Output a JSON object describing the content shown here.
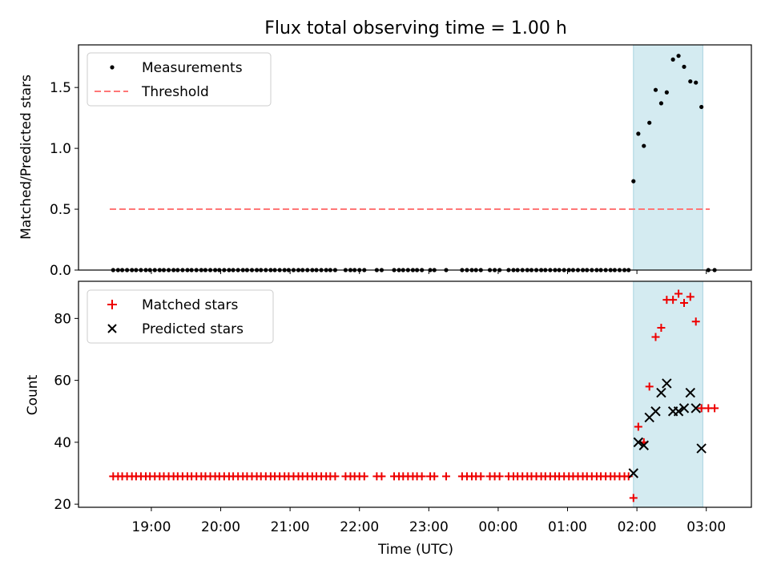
{
  "chart_data": [
    {
      "type": "scatter",
      "title": "Flux total observing time = 1.00 h",
      "ylabel": "Matched/Predicted stars",
      "xlabel": "",
      "xlim_hours": [
        17.95,
        27.65
      ],
      "ylim": [
        0,
        1.85
      ],
      "yticks": [
        0.0,
        0.5,
        1.0,
        1.5
      ],
      "ytick_labels": [
        "0.0",
        "0.5",
        "1.0",
        "1.5"
      ],
      "grid": false,
      "legend_position": "top-left",
      "highlight_span_hours": [
        25.95,
        26.95
      ],
      "highlight_color": "#d4ebf1",
      "series": [
        {
          "name": "Measurements",
          "marker": "dot",
          "color": "#000000",
          "x_hours": [
            18.45,
            18.52,
            18.58,
            18.65,
            18.72,
            18.78,
            18.85,
            18.92,
            18.98,
            19.05,
            19.12,
            19.18,
            19.25,
            19.32,
            19.38,
            19.45,
            19.52,
            19.58,
            19.65,
            19.72,
            19.78,
            19.85,
            19.92,
            19.98,
            20.05,
            20.12,
            20.18,
            20.25,
            20.32,
            20.38,
            20.45,
            20.52,
            20.58,
            20.65,
            20.72,
            20.78,
            20.85,
            20.92,
            20.98,
            21.05,
            21.12,
            21.18,
            21.25,
            21.32,
            21.38,
            21.45,
            21.52,
            21.58,
            21.65,
            21.8,
            21.87,
            21.93,
            22.0,
            22.07,
            22.25,
            22.32,
            22.5,
            22.57,
            22.63,
            22.7,
            22.77,
            22.83,
            22.9,
            23.02,
            23.08,
            23.25,
            23.48,
            23.55,
            23.62,
            23.68,
            23.75,
            23.88,
            23.95,
            24.02,
            24.15,
            24.22,
            24.28,
            24.35,
            24.42,
            24.48,
            24.55,
            24.62,
            24.68,
            24.75,
            24.82,
            24.88,
            24.95,
            25.02,
            25.08,
            25.15,
            25.22,
            25.28,
            25.35,
            25.42,
            25.48,
            25.55,
            25.62,
            25.68,
            25.75,
            25.82,
            25.88,
            25.95,
            26.02,
            26.1,
            26.18,
            26.27,
            26.35,
            26.43,
            26.52,
            26.6,
            26.68,
            26.77,
            26.85,
            26.93,
            27.03,
            27.12
          ],
          "y": [
            0.0,
            0.0,
            0.0,
            0.0,
            0.0,
            0.0,
            0.0,
            0.0,
            0.0,
            0.0,
            0.0,
            0.0,
            0.0,
            0.0,
            0.0,
            0.0,
            0.0,
            0.0,
            0.0,
            0.0,
            0.0,
            0.0,
            0.0,
            0.0,
            0.0,
            0.0,
            0.0,
            0.0,
            0.0,
            0.0,
            0.0,
            0.0,
            0.0,
            0.0,
            0.0,
            0.0,
            0.0,
            0.0,
            0.0,
            0.0,
            0.0,
            0.0,
            0.0,
            0.0,
            0.0,
            0.0,
            0.0,
            0.0,
            0.0,
            0.0,
            0.0,
            0.0,
            0.0,
            0.0,
            0.0,
            0.0,
            0.0,
            0.0,
            0.0,
            0.0,
            0.0,
            0.0,
            0.0,
            0.0,
            0.0,
            0.0,
            0.0,
            0.0,
            0.0,
            0.0,
            0.0,
            0.0,
            0.0,
            0.0,
            0.0,
            0.0,
            0.0,
            0.0,
            0.0,
            0.0,
            0.0,
            0.0,
            0.0,
            0.0,
            0.0,
            0.0,
            0.0,
            0.0,
            0.0,
            0.0,
            0.0,
            0.0,
            0.0,
            0.0,
            0.0,
            0.0,
            0.0,
            0.0,
            0.0,
            0.0,
            0.0,
            0.73,
            1.12,
            1.02,
            1.21,
            1.48,
            1.37,
            1.46,
            1.73,
            1.76,
            1.67,
            1.55,
            1.54,
            1.34,
            0.0,
            0.0
          ]
        },
        {
          "name": "Threshold",
          "line": "dashed",
          "color": "#ff7777",
          "x_hours": [
            18.4,
            27.05
          ],
          "y": [
            0.5,
            0.5
          ]
        }
      ]
    },
    {
      "type": "scatter",
      "title": "",
      "ylabel": "Count",
      "xlabel": "Time (UTC)",
      "xlim_hours": [
        17.95,
        27.65
      ],
      "ylim": [
        19,
        92
      ],
      "yticks": [
        20,
        40,
        60,
        80
      ],
      "ytick_labels": [
        "20",
        "40",
        "60",
        "80"
      ],
      "xticks_hours": [
        19,
        20,
        21,
        22,
        23,
        24,
        25,
        26,
        27
      ],
      "xtick_labels": [
        "19:00",
        "20:00",
        "21:00",
        "22:00",
        "23:00",
        "00:00",
        "01:00",
        "02:00",
        "03:00"
      ],
      "grid": false,
      "legend_position": "top-left",
      "highlight_span_hours": [
        25.95,
        26.95
      ],
      "highlight_color": "#d4ebf1",
      "series": [
        {
          "name": "Matched stars",
          "marker": "plus",
          "color": "#ee0000",
          "x_hours": [
            18.45,
            18.52,
            18.58,
            18.65,
            18.72,
            18.78,
            18.85,
            18.92,
            18.98,
            19.05,
            19.12,
            19.18,
            19.25,
            19.32,
            19.38,
            19.45,
            19.52,
            19.58,
            19.65,
            19.72,
            19.78,
            19.85,
            19.92,
            19.98,
            20.05,
            20.12,
            20.18,
            20.25,
            20.32,
            20.38,
            20.45,
            20.52,
            20.58,
            20.65,
            20.72,
            20.78,
            20.85,
            20.92,
            20.98,
            21.05,
            21.12,
            21.18,
            21.25,
            21.32,
            21.38,
            21.45,
            21.52,
            21.58,
            21.65,
            21.8,
            21.87,
            21.93,
            22.0,
            22.07,
            22.25,
            22.32,
            22.5,
            22.57,
            22.63,
            22.7,
            22.77,
            22.83,
            22.9,
            23.02,
            23.08,
            23.25,
            23.48,
            23.55,
            23.62,
            23.68,
            23.75,
            23.88,
            23.95,
            24.02,
            24.15,
            24.22,
            24.28,
            24.35,
            24.42,
            24.48,
            24.55,
            24.62,
            24.68,
            24.75,
            24.82,
            24.88,
            24.95,
            25.02,
            25.08,
            25.15,
            25.22,
            25.28,
            25.35,
            25.42,
            25.48,
            25.55,
            25.62,
            25.68,
            25.75,
            25.82,
            25.88,
            25.95,
            26.02,
            26.1,
            26.18,
            26.27,
            26.35,
            26.43,
            26.52,
            26.6,
            26.68,
            26.77,
            26.85,
            26.93,
            27.03,
            27.12
          ],
          "y": [
            29,
            29,
            29,
            29,
            29,
            29,
            29,
            29,
            29,
            29,
            29,
            29,
            29,
            29,
            29,
            29,
            29,
            29,
            29,
            29,
            29,
            29,
            29,
            29,
            29,
            29,
            29,
            29,
            29,
            29,
            29,
            29,
            29,
            29,
            29,
            29,
            29,
            29,
            29,
            29,
            29,
            29,
            29,
            29,
            29,
            29,
            29,
            29,
            29,
            29,
            29,
            29,
            29,
            29,
            29,
            29,
            29,
            29,
            29,
            29,
            29,
            29,
            29,
            29,
            29,
            29,
            29,
            29,
            29,
            29,
            29,
            29,
            29,
            29,
            29,
            29,
            29,
            29,
            29,
            29,
            29,
            29,
            29,
            29,
            29,
            29,
            29,
            29,
            29,
            29,
            29,
            29,
            29,
            29,
            29,
            29,
            29,
            29,
            29,
            29,
            29,
            22,
            45,
            40,
            58,
            74,
            77,
            86,
            86,
            88,
            85,
            87,
            79,
            51,
            51,
            51
          ]
        },
        {
          "name": "Predicted stars",
          "marker": "x",
          "color": "#000000",
          "x_hours": [
            25.95,
            26.02,
            26.1,
            26.18,
            26.27,
            26.35,
            26.43,
            26.52,
            26.6,
            26.68,
            26.77,
            26.85,
            26.93
          ],
          "y": [
            30,
            40,
            39,
            48,
            50,
            56,
            59,
            50,
            50,
            51,
            56,
            51,
            38
          ]
        }
      ]
    }
  ]
}
